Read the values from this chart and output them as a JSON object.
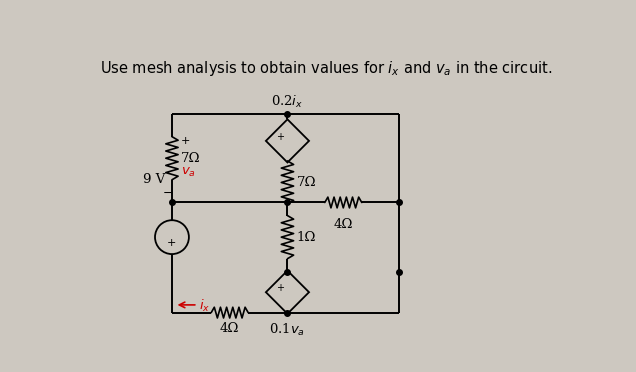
{
  "title": "Use mesh analysis to obtain values for $i_x$ and $v_a$ in the circuit.",
  "bg_color": "#cdc8c0",
  "line_color": "black",
  "label_7ohm_left": "7Ω",
  "label_7ohm_mid": "7Ω",
  "label_4ohm_mid": "4Ω",
  "label_1ohm": "1Ω",
  "label_4ohm_bot": "4Ω",
  "label_02ix": "0.2$i_x$",
  "label_01va": "0.1$v_a$",
  "label_9v": "9 V",
  "label_ix": "$i_x$",
  "label_va": "$v_a$",
  "red_color": "#cc0000",
  "plus_color": "black"
}
